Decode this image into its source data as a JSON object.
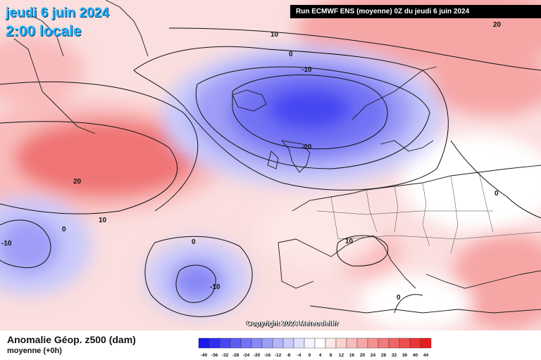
{
  "header": {
    "date": "jeudi 6 juin 2024",
    "time": "2:00 locale",
    "run_info": "Run ECMWF ENS (moyenne) 0Z du jeudi 6 juin 2024"
  },
  "map": {
    "contour_labels": [
      "10",
      "20",
      "0",
      "-10",
      "-20",
      "20",
      "10",
      "0",
      "-10",
      "0",
      "-10",
      "10",
      "0",
      "0"
    ],
    "colors": {
      "negative_strong": "#2222ee",
      "negative_light": "#c8ccf6",
      "positive_light": "#fbd2d2",
      "positive_strong": "#ee4a4a"
    }
  },
  "footer": {
    "variable": "Anomalie Géop. z500 (dam)",
    "subtitle": "moyenne  (+0h)",
    "copyright": "Copyright 2024 Meteociel.fr"
  },
  "legend": {
    "ticks": [
      "-40",
      "-36",
      "-32",
      "-28",
      "-24",
      "-20",
      "-16",
      "-12",
      "-8",
      "-4",
      "0",
      "4",
      "8",
      "12",
      "16",
      "20",
      "24",
      "28",
      "32",
      "36",
      "40",
      "44"
    ],
    "colors": [
      "#1a1aee",
      "#2f2ff0",
      "#4646f2",
      "#5c5cf3",
      "#7272f4",
      "#8888f5",
      "#9e9ef7",
      "#b4b4f8",
      "#cacafa",
      "#e0e0fc",
      "#f4f4fe",
      "#ffffff",
      "#fde6e6",
      "#fbd2d2",
      "#f9bcbc",
      "#f7a6a6",
      "#f59090",
      "#f37a7a",
      "#f16464",
      "#ee4e4e",
      "#eb3434",
      "#e81c1c"
    ]
  }
}
